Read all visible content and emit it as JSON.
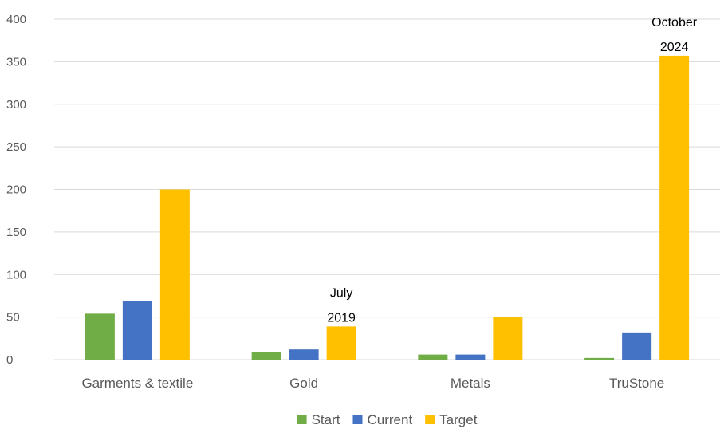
{
  "chart_data": {
    "type": "bar",
    "categories": [
      "Garments & textile",
      "Gold",
      "Metals",
      "TruStone"
    ],
    "series": [
      {
        "name": "Start",
        "color": "#70ad47",
        "values": [
          54,
          9,
          6,
          2
        ]
      },
      {
        "name": "Current",
        "color": "#4472c4",
        "values": [
          69,
          12,
          6,
          32
        ]
      },
      {
        "name": "Target",
        "color": "#ffc000",
        "values": [
          200,
          39,
          50,
          357
        ]
      }
    ],
    "ylim": [
      0,
      400
    ],
    "yticks": [
      0,
      50,
      100,
      150,
      200,
      250,
      300,
      350,
      400
    ],
    "grid": true,
    "legend": "bottom",
    "annotations": [
      {
        "category": "Gold",
        "series": "Target",
        "lines": [
          "July",
          "2019"
        ]
      },
      {
        "category": "TruStone",
        "series": "Target",
        "lines": [
          "October",
          "2024"
        ]
      }
    ]
  }
}
